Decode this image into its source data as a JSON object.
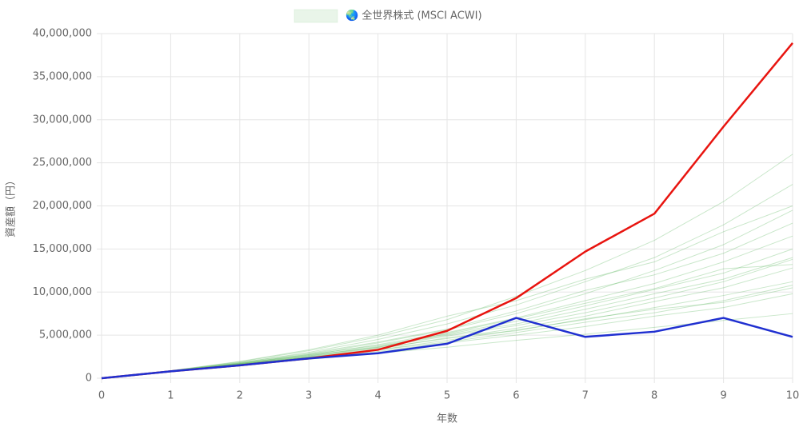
{
  "chart_data": {
    "type": "line",
    "x": [
      0,
      1,
      2,
      3,
      4,
      5,
      6,
      7,
      8,
      9,
      10
    ],
    "xlim": [
      0,
      10
    ],
    "xticks": [
      0,
      1,
      2,
      3,
      4,
      5,
      6,
      7,
      8,
      9,
      10
    ],
    "ylim": [
      0,
      40000000
    ],
    "yticks": [
      0,
      {
        "value": 5000000,
        "label": "5,000,000"
      },
      {
        "value": 10000000,
        "label": "10,000,000"
      },
      {
        "value": 15000000,
        "label": "15,000,000"
      },
      {
        "value": 20000000,
        "label": "20,000,000"
      },
      {
        "value": 25000000,
        "label": "25,000,000"
      },
      {
        "value": 30000000,
        "label": "30,000,000"
      },
      {
        "value": 35000000,
        "label": "35,000,000"
      },
      {
        "value": 40000000,
        "label": "40,000,000"
      }
    ],
    "xlabel": "年数",
    "ylabel": "資産額（円）",
    "grid": true,
    "series": [
      {
        "name": "🌏 全世界株式 (MSCI ACWI)",
        "color": "rgba(76,175,80,0.3)",
        "paths": [
          [
            0,
            800000,
            1650000,
            2600000,
            3700000,
            5000000,
            6300000,
            8000000,
            9800000,
            11500000,
            14000000
          ],
          [
            0,
            820000,
            1700000,
            2800000,
            4100000,
            5600000,
            7500000,
            9800000,
            12500000,
            15500000,
            19500000
          ],
          [
            0,
            780000,
            1550000,
            2300000,
            3100000,
            4100000,
            5000000,
            6000000,
            7200000,
            8200000,
            9800000
          ],
          [
            0,
            850000,
            1800000,
            3000000,
            4500000,
            6300000,
            8500000,
            11200000,
            14000000,
            17800000,
            22500000
          ],
          [
            0,
            760000,
            1500000,
            2200000,
            2900000,
            3600000,
            4400000,
            5100000,
            5900000,
            6700000,
            7500000
          ],
          [
            0,
            810000,
            1680000,
            2700000,
            3900000,
            5300000,
            7000000,
            9000000,
            11000000,
            13500000,
            16500000
          ],
          [
            0,
            830000,
            1750000,
            2750000,
            3800000,
            5100000,
            6600000,
            8400000,
            10300000,
            12200000,
            15000000
          ],
          [
            0,
            790000,
            1600000,
            2500000,
            3500000,
            4600000,
            5800000,
            7200000,
            8900000,
            10500000,
            12800000
          ],
          [
            0,
            870000,
            1900000,
            3200000,
            4800000,
            6800000,
            9500000,
            12500000,
            16000000,
            20500000,
            26000000
          ],
          [
            0,
            800000,
            1620000,
            2450000,
            3300000,
            4400000,
            5600000,
            6800000,
            8200000,
            9600000,
            11200000
          ],
          [
            0,
            840000,
            1720000,
            2650000,
            3600000,
            5200000,
            6900000,
            8700000,
            10400000,
            12700000,
            13200000
          ],
          [
            0,
            770000,
            1580000,
            2450000,
            3400000,
            4700000,
            5500000,
            6900000,
            8000000,
            8800000,
            10500000
          ],
          [
            0,
            860000,
            1820000,
            2900000,
            4200000,
            5700000,
            7800000,
            10200000,
            12000000,
            14500000,
            18000000
          ],
          [
            0,
            810000,
            1640000,
            2550000,
            3600000,
            4900000,
            6100000,
            7600000,
            9300000,
            11200000,
            13800000
          ],
          [
            0,
            880000,
            1950000,
            3300000,
            5000000,
            7200000,
            9000000,
            11500000,
            13500000,
            17000000,
            20000000
          ],
          [
            0,
            790000,
            1590000,
            2400000,
            3300000,
            4200000,
            5300000,
            6500000,
            7600000,
            9000000,
            10800000
          ]
        ]
      },
      {
        "color": "#e8140f",
        "values": [
          0,
          800000,
          1500000,
          2300000,
          3300000,
          5500000,
          9300000,
          14700000,
          19100000,
          29200000,
          38900000
        ]
      },
      {
        "color": "#1f2fd0",
        "values": [
          0,
          800000,
          1500000,
          2300000,
          2900000,
          4000000,
          7000000,
          4800000,
          5400000,
          7000000,
          4800000
        ]
      }
    ]
  }
}
